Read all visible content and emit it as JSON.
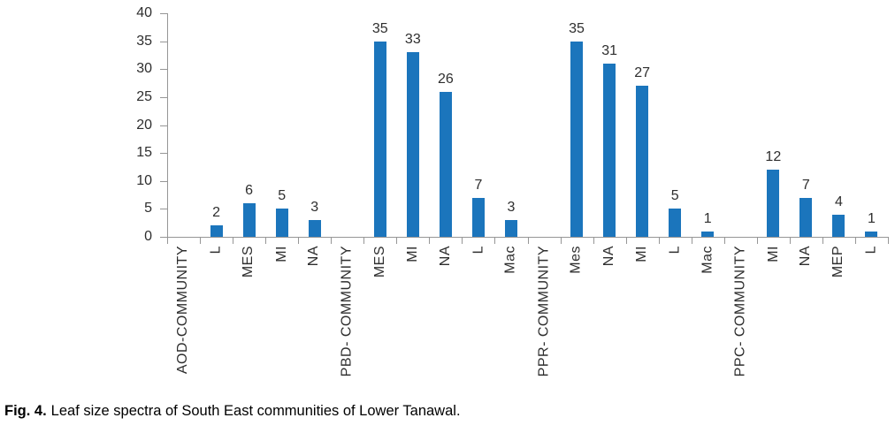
{
  "figure": {
    "caption_prefix": "Fig. 4.",
    "caption_body": "Leaf size spectra of South East communities of Lower Tanawal."
  },
  "chart_data": {
    "type": "bar",
    "title": "",
    "xlabel": "",
    "ylabel": "",
    "categories": [
      "AOD-COMMUNITY",
      "L",
      "MES",
      "MI",
      "NA",
      "PBD- COMMUNITY",
      "MES",
      "MI",
      "NA",
      "L",
      "Mac",
      "PPR- COMMUNITY",
      "Mes",
      "NA",
      "MI",
      "L",
      "Mac",
      "PPC- COMMUNITY",
      "MI",
      "NA",
      "MEP",
      "L"
    ],
    "values": [
      0,
      2,
      6,
      5,
      3,
      0,
      35,
      33,
      26,
      7,
      3,
      0,
      35,
      31,
      27,
      5,
      1,
      0,
      12,
      7,
      4,
      1
    ],
    "data_labels_visible": true,
    "ylim": [
      0,
      40
    ],
    "yticks": [
      0,
      5,
      10,
      15,
      20,
      25,
      30,
      35,
      40
    ],
    "x_tick_rotation": -90,
    "grid": false,
    "legend": "none",
    "bar_color": "#1B75BC",
    "axis_color": "#969696",
    "label_color": "#2E2E2E"
  }
}
